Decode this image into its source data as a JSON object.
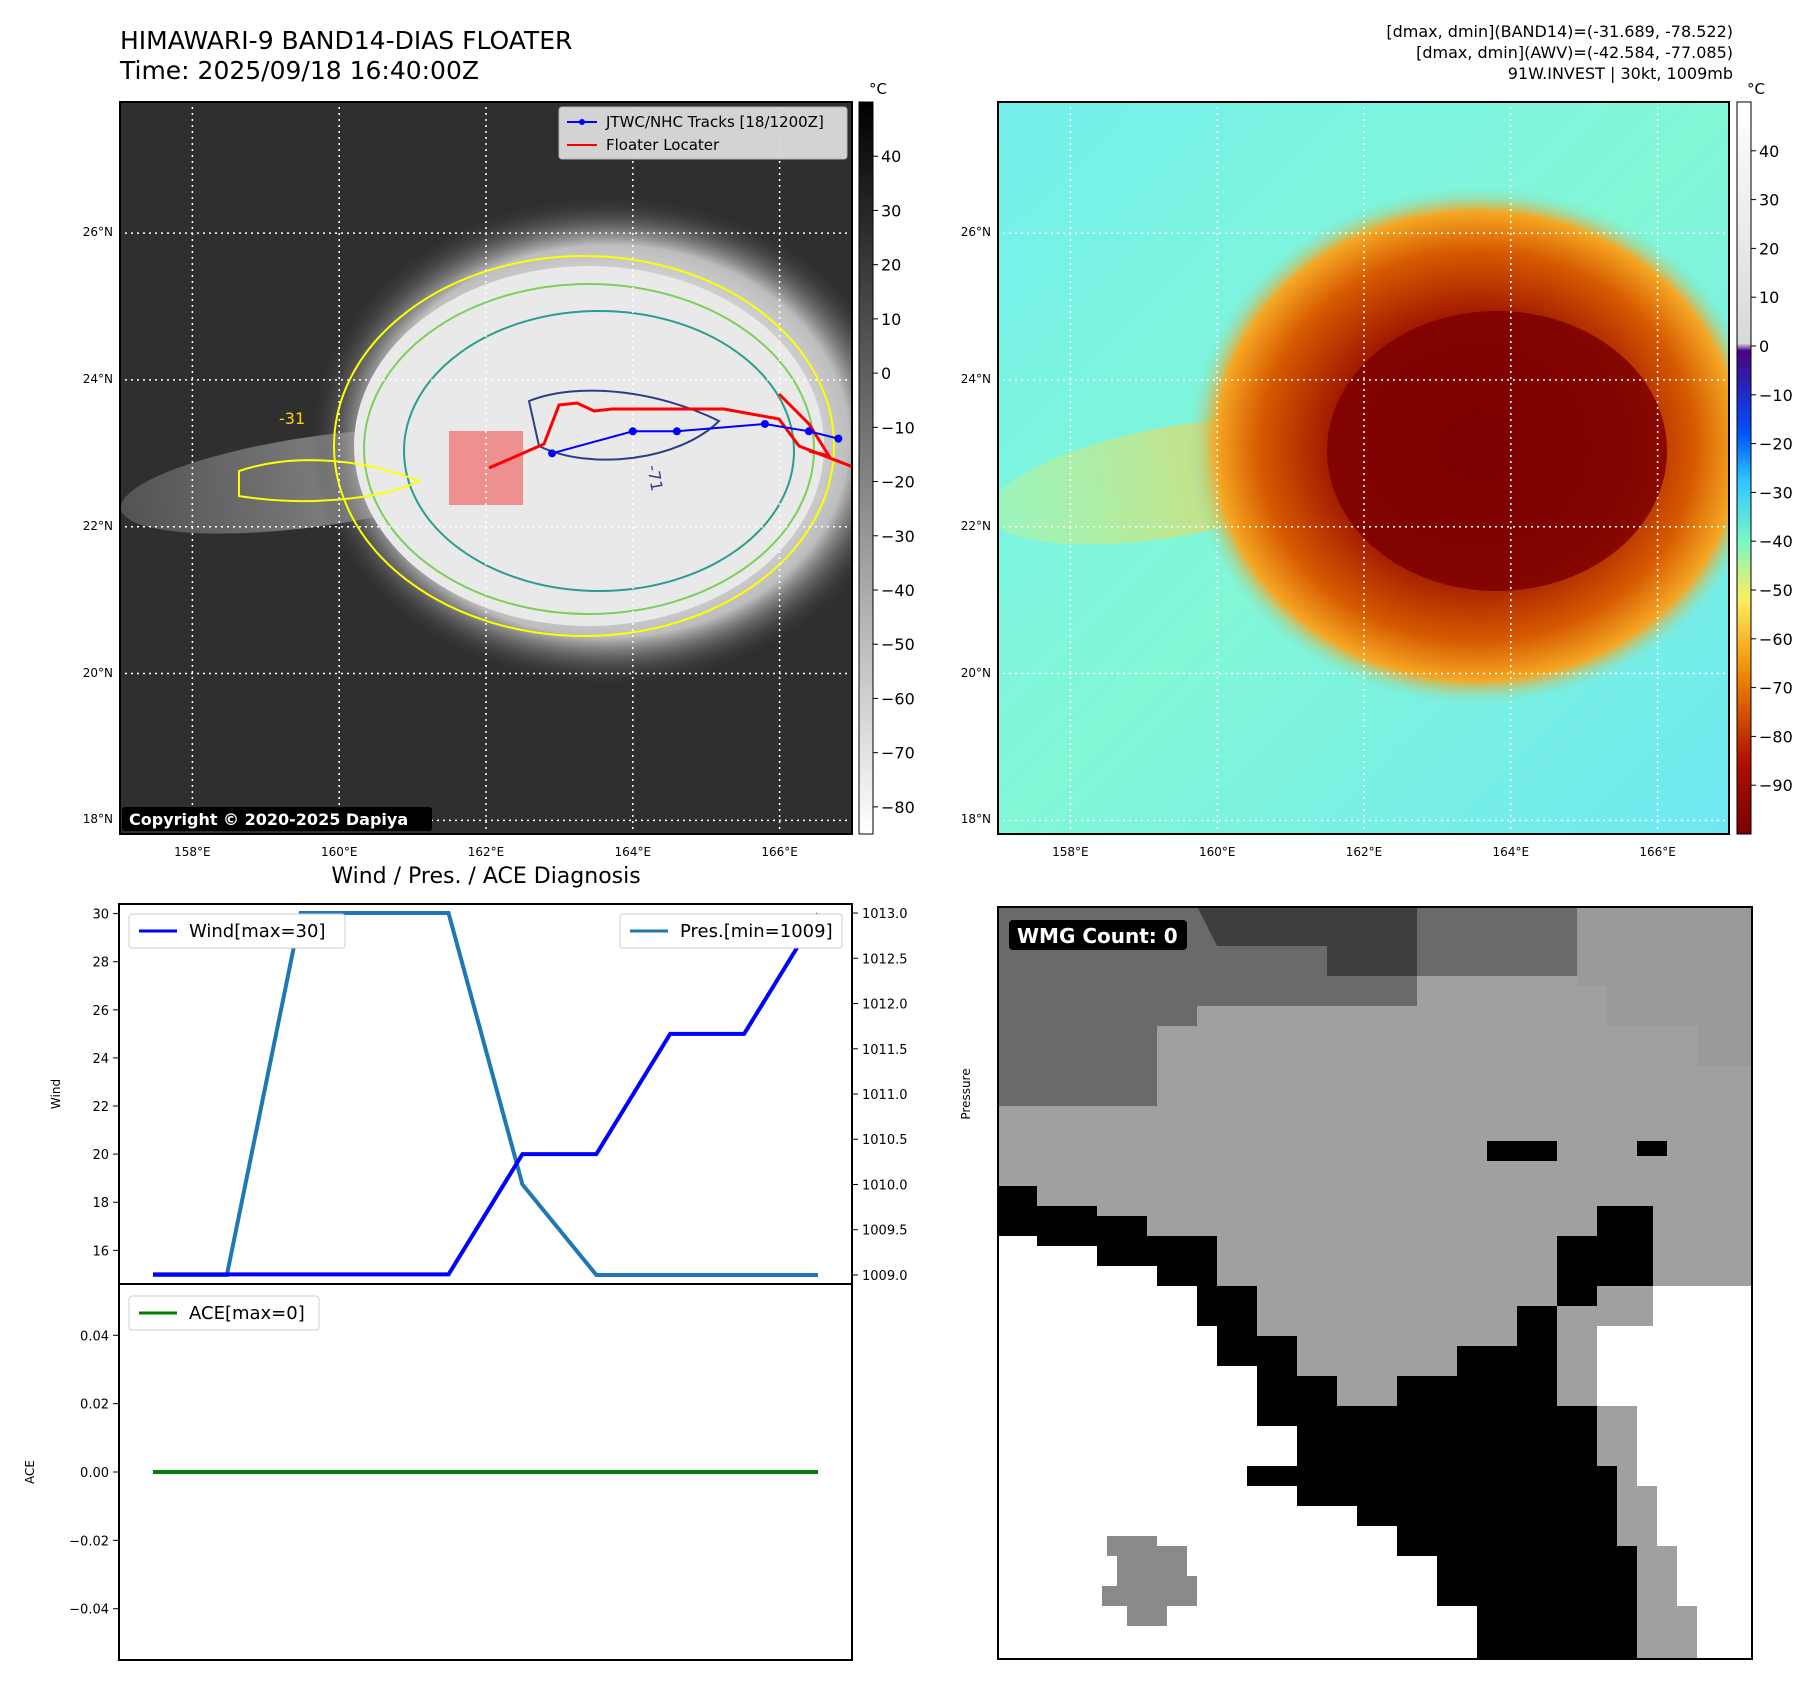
{
  "header": {
    "title": "HIMAWARI-9 BAND14-DIAS FLOATER",
    "time": "Time: 2025/09/18 16:40:00Z",
    "meta_line1": "[dmax, dmin](BAND14)=(-31.689, -78.522)",
    "meta_line2": "[dmax, dmin](AWV)=(-42.584, -77.085)",
    "meta_line3": "91W.INVEST | 30kt, 1009mb"
  },
  "map_axes": {
    "lat_labels": [
      "26°N",
      "24°N",
      "22°N",
      "20°N",
      "18°N"
    ],
    "lon_labels": [
      "158°E",
      "160°E",
      "162°E",
      "164°E",
      "166°E"
    ],
    "lat_values": [
      26,
      24,
      22,
      20,
      18
    ],
    "lon_values": [
      158,
      160,
      162,
      164,
      166
    ],
    "lon_range": [
      157,
      167
    ],
    "lat_range": [
      17.8,
      27.8
    ]
  },
  "ir_panel": {
    "legend_tracks": "JTWC/NHC Tracks [18/1200Z]",
    "legend_floater": "Floater Locater",
    "track_color": "#0000ff",
    "floater_color": "#ff0000",
    "contour_label": "-31",
    "contour_label_2": "-71",
    "copyright": "Copyright © 2020-2025 Dapiya",
    "colorbar_unit": "°C",
    "colorbar_ticks": [
      "40",
      "30",
      "20",
      "10",
      "0",
      "−10",
      "−20",
      "−30",
      "−40",
      "−50",
      "−60",
      "−70",
      "−80"
    ],
    "colorbar_values": [
      40,
      30,
      20,
      10,
      0,
      -10,
      -20,
      -30,
      -40,
      -50,
      -60,
      -70,
      -80
    ],
    "colorbar_range": [
      -85,
      50
    ],
    "track_points": [
      [
        164,
        23.3
      ],
      [
        164.6,
        23.3
      ],
      [
        165.8,
        23.4
      ],
      [
        166.4,
        23.3
      ],
      [
        166.8,
        23.2
      ],
      [
        162.9,
        23.0
      ]
    ]
  },
  "awv_panel": {
    "colorbar_unit": "°C",
    "colorbar_ticks": [
      "40",
      "30",
      "20",
      "10",
      "0",
      "−10",
      "−20",
      "−30",
      "−40",
      "−50",
      "−60",
      "−70",
      "−80",
      "−90"
    ],
    "colorbar_values": [
      40,
      30,
      20,
      10,
      0,
      -10,
      -20,
      -30,
      -40,
      -50,
      -60,
      -70,
      -80,
      -90
    ],
    "colorbar_range": [
      -100,
      50
    ]
  },
  "diagnosis": {
    "title": "Wind / Pres. / ACE Diagnosis",
    "wind_legend": "Wind[max=30]",
    "pres_legend": "Pres.[min=1009]",
    "ace_legend": "ACE[max=0]",
    "wind_ylabel": "Wind",
    "pres_ylabel": "Pressure",
    "ace_ylabel": "ACE",
    "wind_color": "#0000ff",
    "pres_color": "#1f77b4",
    "ace_color": "#008000",
    "wind_ticks": [
      "30",
      "28",
      "26",
      "24",
      "22",
      "20",
      "18",
      "16"
    ],
    "wind_tick_values": [
      30,
      28,
      26,
      24,
      22,
      20,
      18,
      16
    ],
    "pres_ticks": [
      "1013.0",
      "1012.5",
      "1012.0",
      "1011.5",
      "1011.0",
      "1010.5",
      "1010.0",
      "1009.5",
      "1009.0"
    ],
    "pres_tick_values": [
      1013.0,
      1012.5,
      1012.0,
      1011.5,
      1011.0,
      1010.5,
      1010.0,
      1009.5,
      1009.0
    ],
    "ace_ticks": [
      "0.04",
      "0.02",
      "0.00",
      "−0.02",
      "−0.04"
    ],
    "ace_tick_values": [
      0.04,
      0.02,
      0.0,
      -0.02,
      -0.04
    ]
  },
  "chart_data": [
    {
      "type": "line",
      "title": "Wind / Pres. / ACE Diagnosis",
      "x": [
        0,
        1,
        2,
        3,
        4,
        5,
        6,
        7,
        8,
        9
      ],
      "series": [
        {
          "name": "Wind[max=30]",
          "axis": "left",
          "values": [
            15,
            15,
            15,
            15,
            15,
            20,
            20,
            25,
            25,
            30
          ]
        },
        {
          "name": "Pres.[min=1009]",
          "axis": "right",
          "values": [
            1009,
            1009,
            1013,
            1013,
            1013,
            1010,
            1009,
            1009,
            1009,
            1009
          ]
        }
      ],
      "ylabel": "Wind",
      "ylabel_right": "Pressure",
      "ylim": [
        14.6,
        30.4
      ],
      "ylim_right": [
        1008.9,
        1013.1
      ]
    },
    {
      "type": "line",
      "x": [
        0,
        1,
        2,
        3,
        4,
        5,
        6,
        7,
        8,
        9
      ],
      "series": [
        {
          "name": "ACE[max=0]",
          "values": [
            0,
            0,
            0,
            0,
            0,
            0,
            0,
            0,
            0,
            0
          ]
        }
      ],
      "ylabel": "ACE",
      "ylim": [
        -0.055,
        0.055
      ]
    }
  ],
  "wmg_panel": {
    "label": "WMG Count: 0"
  }
}
